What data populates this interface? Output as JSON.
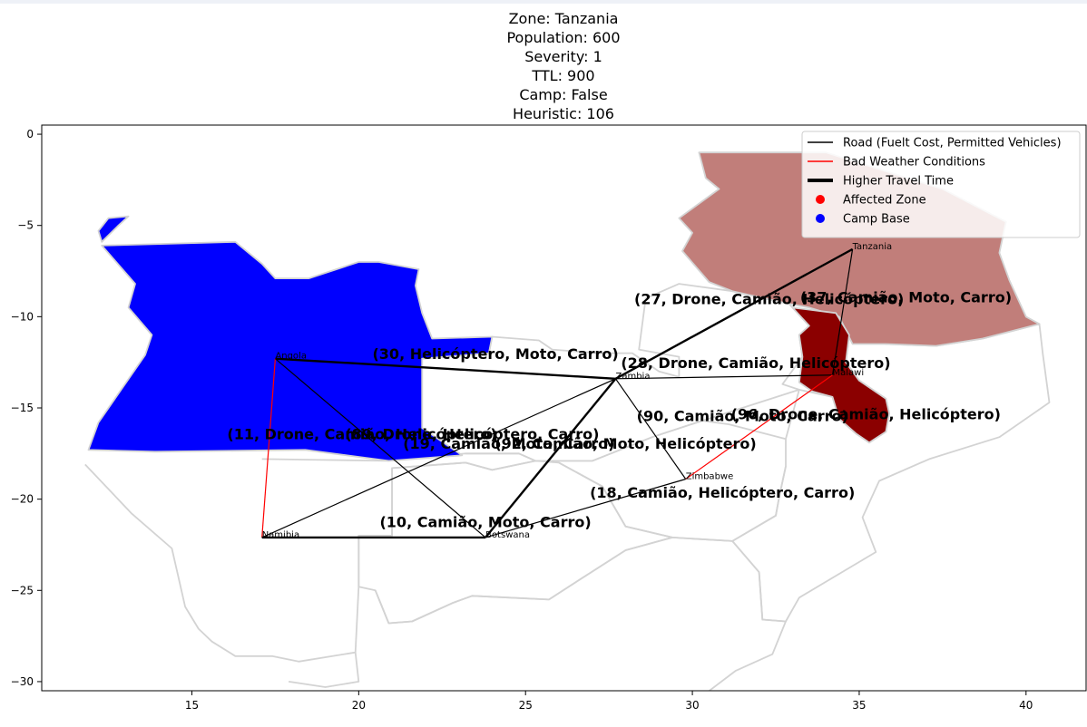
{
  "title_lines": [
    "Zone: Tanzania",
    "Population: 600",
    "Severity: 1",
    "TTL: 900",
    "Camp: False",
    "Heuristic: 106"
  ],
  "colors": {
    "road": "#000000",
    "bad_weather": "#ff0000",
    "affected": "#8b0000",
    "affected_light": "#c17e7a",
    "camp": "#0000ff",
    "border": "#d3d3d3"
  },
  "chart_data": {
    "type": "map",
    "xlim": [
      10.5,
      41.8
    ],
    "ylim": [
      -30.5,
      0.5
    ],
    "x_ticks": [
      15,
      20,
      25,
      30,
      35,
      40
    ],
    "y_ticks": [
      0,
      -5,
      -10,
      -15,
      -20,
      -25,
      -30
    ],
    "x_tick_labels": [
      "15",
      "20",
      "25",
      "30",
      "35",
      "40"
    ],
    "y_tick_labels": [
      "0",
      "−5",
      "−10",
      "−15",
      "−20",
      "−25",
      "−30"
    ],
    "legend": {
      "placement": "top-right",
      "entries": [
        {
          "label": "Road (Fuelt Cost, Permitted Vehicles)",
          "kind": "line",
          "color": "#000000",
          "width": 1.5
        },
        {
          "label": "Bad Weather Conditions",
          "kind": "line",
          "color": "#ff0000",
          "width": 1.5
        },
        {
          "label": "Higher Travel Time",
          "kind": "line",
          "color": "#000000",
          "width": 4
        },
        {
          "label": "Affected Zone",
          "kind": "dot",
          "color": "#ff0000"
        },
        {
          "label": "Camp Base",
          "kind": "dot",
          "color": "#0000ff"
        }
      ]
    },
    "nodes": [
      {
        "name": "Angola",
        "x": 17.5,
        "y": -12.3
      },
      {
        "name": "Zambia",
        "x": 27.7,
        "y": -13.4
      },
      {
        "name": "Tanzania",
        "x": 34.8,
        "y": -6.3
      },
      {
        "name": "Malawi",
        "x": 34.2,
        "y": -13.2
      },
      {
        "name": "Zimbabwe",
        "x": 29.8,
        "y": -18.9
      },
      {
        "name": "Namibia",
        "x": 17.1,
        "y": -22.1
      },
      {
        "name": "Botswana",
        "x": 23.8,
        "y": -22.1
      }
    ],
    "edges": [
      {
        "from": "Angola",
        "to": "Zambia",
        "label": "(30, Helicóptero, Moto, Carro)",
        "weather": false,
        "heavy": true,
        "lx": 24.1,
        "ly": -12.1
      },
      {
        "from": "Angola",
        "to": "Namibia",
        "label": "(11, Drone, Camião, Helicóptero)",
        "weather": true,
        "heavy": false,
        "lx": 20.1,
        "ly": -16.5
      },
      {
        "from": "Angola",
        "to": "Botswana",
        "label": "(19, Camião, Moto, Carro)",
        "weather": false,
        "heavy": false,
        "lx": 24.5,
        "ly": -17.0
      },
      {
        "from": "Zambia",
        "to": "Namibia",
        "label": "(89, Drone, Helicóptero, Carro)",
        "weather": false,
        "heavy": false,
        "lx": 23.4,
        "ly": -16.5
      },
      {
        "from": "Zambia",
        "to": "Tanzania",
        "label": "(27, Drone, Camião, Helicóptero)",
        "weather": false,
        "heavy": true,
        "lx": 32.3,
        "ly": -9.1
      },
      {
        "from": "Zambia",
        "to": "Malawi",
        "label": "(28, Drone, Camião, Helicóptero)",
        "weather": false,
        "heavy": false,
        "lx": 31.9,
        "ly": -12.6
      },
      {
        "from": "Zambia",
        "to": "Zimbabwe",
        "label": "(90, Camião, Moto, Carro)",
        "weather": false,
        "heavy": false,
        "lx": 31.5,
        "ly": -15.5
      },
      {
        "from": "Zambia",
        "to": "Botswana",
        "label": "(92, Camião, Moto, Helicóptero)",
        "weather": false,
        "heavy": true,
        "lx": 28.0,
        "ly": -17.0
      },
      {
        "from": "Tanzania",
        "to": "Malawi",
        "label": "(37, Camião, Moto, Carro)",
        "weather": false,
        "heavy": false,
        "lx": 36.4,
        "ly": -9.0
      },
      {
        "from": "Malawi",
        "to": "Zimbabwe",
        "label": "(96, Drone, Camião, Helicóptero)",
        "weather": true,
        "heavy": false,
        "lx": 35.2,
        "ly": -15.4
      },
      {
        "from": "Zimbabwe",
        "to": "Botswana",
        "label": "(18, Camião, Helicóptero, Carro)",
        "weather": false,
        "heavy": false,
        "lx": 30.9,
        "ly": -19.7
      },
      {
        "from": "Namibia",
        "to": "Botswana",
        "label": "(10, Camião, Moto, Carro)",
        "weather": false,
        "heavy": true,
        "lx": 23.8,
        "ly": -21.3
      }
    ],
    "regions": [
      {
        "name": "Tanzania",
        "role": "affected-light",
        "color": "#c17e7a",
        "points": [
          [
            30.2,
            -1.0
          ],
          [
            31.8,
            -1.0
          ],
          [
            34.0,
            -1.0
          ],
          [
            37.5,
            -3.0
          ],
          [
            39.4,
            -4.8
          ],
          [
            39.2,
            -6.5
          ],
          [
            39.5,
            -8.0
          ],
          [
            40.0,
            -10.0
          ],
          [
            40.4,
            -10.4
          ],
          [
            38.7,
            -11.2
          ],
          [
            37.3,
            -11.6
          ],
          [
            35.8,
            -11.5
          ],
          [
            34.8,
            -11.5
          ],
          [
            34.4,
            -10.0
          ],
          [
            33.5,
            -9.5
          ],
          [
            32.9,
            -9.3
          ],
          [
            31.2,
            -8.6
          ],
          [
            30.5,
            -8.1
          ],
          [
            29.7,
            -6.4
          ],
          [
            30.0,
            -5.4
          ],
          [
            29.6,
            -4.6
          ],
          [
            30.8,
            -3.0
          ],
          [
            30.4,
            -2.4
          ]
        ]
      },
      {
        "name": "Malawi",
        "role": "affected",
        "color": "#8b0000",
        "points": [
          [
            33.0,
            -9.5
          ],
          [
            34.3,
            -9.8
          ],
          [
            34.7,
            -11.0
          ],
          [
            34.6,
            -12.5
          ],
          [
            35.0,
            -13.5
          ],
          [
            35.8,
            -14.5
          ],
          [
            35.9,
            -15.3
          ],
          [
            35.8,
            -16.3
          ],
          [
            35.3,
            -16.9
          ],
          [
            34.9,
            -16.4
          ],
          [
            34.4,
            -15.6
          ],
          [
            34.2,
            -14.4
          ],
          [
            33.6,
            -14.1
          ],
          [
            33.2,
            -13.6
          ],
          [
            33.3,
            -12.2
          ],
          [
            33.2,
            -11.0
          ],
          [
            33.5,
            -10.5
          ]
        ]
      },
      {
        "name": "Angola",
        "role": "camp",
        "color": "#0000ff",
        "points": [
          [
            11.9,
            -17.3
          ],
          [
            12.2,
            -15.8
          ],
          [
            13.6,
            -12.1
          ],
          [
            13.8,
            -11.0
          ],
          [
            13.1,
            -9.5
          ],
          [
            13.3,
            -8.2
          ],
          [
            12.3,
            -6.1
          ],
          [
            16.3,
            -5.9
          ],
          [
            17.1,
            -7.1
          ],
          [
            17.5,
            -7.9
          ],
          [
            18.5,
            -7.9
          ],
          [
            20.0,
            -7.0
          ],
          [
            20.6,
            -7.0
          ],
          [
            21.8,
            -7.4
          ],
          [
            21.7,
            -8.3
          ],
          [
            21.9,
            -9.8
          ],
          [
            22.2,
            -11.2
          ],
          [
            24.0,
            -11.1
          ],
          [
            23.9,
            -12.0
          ],
          [
            21.9,
            -12.3
          ],
          [
            21.9,
            -16.1
          ],
          [
            23.1,
            -17.6
          ],
          [
            20.9,
            -17.9
          ],
          [
            18.4,
            -17.3
          ],
          [
            13.9,
            -17.4
          ]
        ]
      },
      {
        "name": "Cabinda",
        "role": "camp",
        "color": "#0000ff",
        "points": [
          [
            12.2,
            -5.3
          ],
          [
            12.5,
            -4.6
          ],
          [
            13.1,
            -4.5
          ],
          [
            12.8,
            -5.0
          ],
          [
            12.3,
            -5.9
          ]
        ]
      }
    ],
    "outlines": [
      [
        [
          17.1,
          -17.8
        ],
        [
          20.9,
          -17.9
        ],
        [
          23.2,
          -17.5
        ],
        [
          24.8,
          -17.5
        ],
        [
          25.3,
          -17.9
        ],
        [
          24.0,
          -18.4
        ],
        [
          23.2,
          -18.0
        ],
        [
          21.0,
          -18.3
        ],
        [
          21.0,
          -22.0
        ],
        [
          20.0,
          -22.0
        ],
        [
          20.0,
          -24.8
        ],
        [
          19.9,
          -28.4
        ],
        [
          18.2,
          -28.9
        ],
        [
          17.4,
          -28.6
        ],
        [
          16.3,
          -28.6
        ],
        [
          15.6,
          -27.8
        ],
        [
          15.2,
          -27.1
        ],
        [
          14.8,
          -25.9
        ],
        [
          14.4,
          -22.7
        ],
        [
          13.2,
          -20.8
        ],
        [
          11.8,
          -18.1
        ]
      ],
      [
        [
          20.0,
          -24.8
        ],
        [
          20.0,
          -22.0
        ],
        [
          21.0,
          -22.0
        ],
        [
          21.0,
          -18.3
        ],
        [
          23.2,
          -18.0
        ],
        [
          24.0,
          -18.4
        ],
        [
          25.3,
          -17.9
        ],
        [
          26.0,
          -18.0
        ],
        [
          27.3,
          -19.3
        ],
        [
          28.0,
          -21.5
        ],
        [
          29.4,
          -22.1
        ],
        [
          28.0,
          -22.8
        ],
        [
          26.8,
          -24.2
        ],
        [
          25.7,
          -25.5
        ],
        [
          23.4,
          -25.3
        ],
        [
          22.8,
          -25.7
        ],
        [
          21.6,
          -26.7
        ],
        [
          20.9,
          -26.8
        ],
        [
          20.5,
          -25.0
        ]
      ],
      [
        [
          25.3,
          -17.9
        ],
        [
          27.0,
          -17.9
        ],
        [
          28.8,
          -16.6
        ],
        [
          30.3,
          -15.7
        ],
        [
          31.1,
          -15.9
        ],
        [
          32.8,
          -16.7
        ],
        [
          32.8,
          -18.2
        ],
        [
          32.6,
          -19.9
        ],
        [
          32.5,
          -20.9
        ],
        [
          31.2,
          -22.3
        ],
        [
          29.4,
          -22.1
        ],
        [
          28.0,
          -21.5
        ],
        [
          27.3,
          -19.3
        ],
        [
          26.0,
          -18.0
        ]
      ],
      [
        [
          21.9,
          -16.1
        ],
        [
          21.9,
          -12.3
        ],
        [
          23.9,
          -12.0
        ],
        [
          24.0,
          -11.1
        ],
        [
          25.4,
          -11.3
        ],
        [
          25.8,
          -11.8
        ],
        [
          27.2,
          -12.0
        ],
        [
          28.2,
          -12.0
        ],
        [
          29.0,
          -13.0
        ],
        [
          29.6,
          -13.3
        ],
        [
          29.6,
          -12.2
        ],
        [
          28.4,
          -11.8
        ],
        [
          28.6,
          -9.0
        ],
        [
          29.6,
          -8.2
        ],
        [
          31.2,
          -8.6
        ],
        [
          32.9,
          -9.3
        ],
        [
          33.5,
          -10.5
        ],
        [
          33.2,
          -11.0
        ],
        [
          33.3,
          -12.2
        ],
        [
          32.7,
          -13.7
        ],
        [
          33.2,
          -14.0
        ],
        [
          30.3,
          -15.7
        ],
        [
          28.8,
          -16.6
        ],
        [
          27.0,
          -17.9
        ],
        [
          25.3,
          -17.9
        ],
        [
          24.8,
          -17.5
        ],
        [
          23.2,
          -17.5
        ]
      ],
      [
        [
          32.8,
          -16.7
        ],
        [
          33.2,
          -14.0
        ],
        [
          34.2,
          -14.4
        ],
        [
          34.4,
          -15.6
        ],
        [
          34.9,
          -16.4
        ],
        [
          35.3,
          -16.9
        ],
        [
          35.8,
          -16.3
        ],
        [
          35.9,
          -15.3
        ],
        [
          35.8,
          -14.5
        ],
        [
          35.0,
          -13.5
        ],
        [
          34.6,
          -12.5
        ],
        [
          34.7,
          -11.0
        ],
        [
          35.8,
          -11.5
        ],
        [
          37.3,
          -11.6
        ],
        [
          38.7,
          -11.2
        ],
        [
          40.4,
          -10.4
        ],
        [
          40.5,
          -12.0
        ],
        [
          40.7,
          -14.7
        ],
        [
          39.2,
          -16.6
        ],
        [
          37.1,
          -17.8
        ],
        [
          35.6,
          -19.0
        ],
        [
          35.1,
          -21.0
        ],
        [
          35.5,
          -22.9
        ],
        [
          33.2,
          -25.4
        ],
        [
          32.8,
          -26.7
        ],
        [
          32.1,
          -26.6
        ],
        [
          32.0,
          -24.0
        ],
        [
          31.2,
          -22.3
        ],
        [
          32.5,
          -20.9
        ],
        [
          32.6,
          -19.9
        ],
        [
          32.8,
          -18.2
        ]
      ],
      [
        [
          20.0,
          -24.8
        ],
        [
          20.5,
          -25.0
        ],
        [
          20.9,
          -26.8
        ],
        [
          21.6,
          -26.7
        ],
        [
          22.8,
          -25.7
        ],
        [
          23.4,
          -25.3
        ],
        [
          25.7,
          -25.5
        ],
        [
          26.8,
          -24.2
        ],
        [
          28.0,
          -22.8
        ],
        [
          29.4,
          -22.1
        ],
        [
          31.2,
          -22.3
        ],
        [
          32.0,
          -24.0
        ],
        [
          32.1,
          -26.6
        ],
        [
          32.8,
          -26.7
        ],
        [
          32.4,
          -28.5
        ],
        [
          31.3,
          -29.4
        ],
        [
          30.0,
          -31.2
        ]
      ],
      [
        [
          19.9,
          -28.4
        ],
        [
          20.0,
          -30.0
        ],
        [
          19.0,
          -30.3
        ],
        [
          17.9,
          -30.0
        ]
      ]
    ]
  }
}
